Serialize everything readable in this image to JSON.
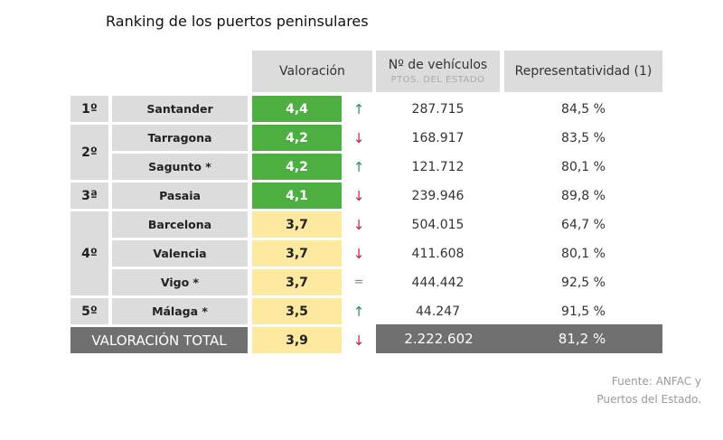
{
  "title": "Ranking de los puertos peninsulares",
  "headers": {
    "valoracion": "Valoración",
    "vehiculos": "Nº de vehículos",
    "vehiculos_sub": "PTOS. DEL ESTADO",
    "representatividad": "Representatividad (1)"
  },
  "colors": {
    "green": "#4caf3f",
    "yellow": "#fde9a0",
    "up": "#1a9a5a",
    "down": "#d0202a",
    "total": "#707070"
  },
  "ranks": [
    {
      "label": "1º",
      "span": 1
    },
    {
      "label": "2º",
      "span": 2
    },
    {
      "label": "3ª",
      "span": 1
    },
    {
      "label": "4º",
      "span": 3
    },
    {
      "label": "5º",
      "span": 1
    }
  ],
  "rows": [
    {
      "port": "Santander",
      "score": "4,4",
      "level": "green",
      "trend": "up",
      "vehicles": "287.715",
      "share": "84,5 %"
    },
    {
      "port": "Tarragona",
      "score": "4,2",
      "level": "green",
      "trend": "down",
      "vehicles": "168.917",
      "share": "83,5 %"
    },
    {
      "port": "Sagunto *",
      "score": "4,2",
      "level": "green",
      "trend": "up",
      "vehicles": "121.712",
      "share": "80,1 %"
    },
    {
      "port": "Pasaia",
      "score": "4,1",
      "level": "green",
      "trend": "down",
      "vehicles": "239.946",
      "share": "89,8 %"
    },
    {
      "port": "Barcelona",
      "score": "3,7",
      "level": "yellow",
      "trend": "down",
      "vehicles": "504.015",
      "share": "64,7 %"
    },
    {
      "port": "Valencia",
      "score": "3,7",
      "level": "yellow",
      "trend": "down",
      "vehicles": "411.608",
      "share": "80,1 %"
    },
    {
      "port": "Vigo *",
      "score": "3,7",
      "level": "yellow",
      "trend": "equal",
      "vehicles": "444.442",
      "share": "92,5 %"
    },
    {
      "port": "Málaga *",
      "score": "3,5",
      "level": "yellow",
      "trend": "up",
      "vehicles": "44.247",
      "share": "91,5 %"
    }
  ],
  "total": {
    "label": "VALORACIÓN TOTAL",
    "score": "3,9",
    "trend": "down",
    "vehicles": "2.222.602",
    "share": "81,2 %"
  },
  "source": {
    "line1": "Fuente: ANFAC y",
    "line2": "Puertos del Estado."
  }
}
